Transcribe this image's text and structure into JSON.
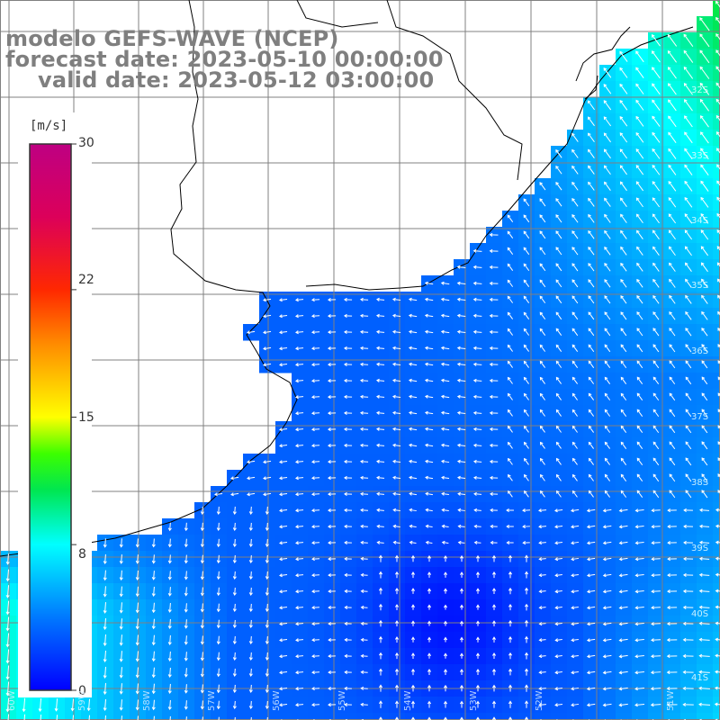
{
  "title": {
    "line1": "modelo GEFS-WAVE (NCEP)",
    "line2": "forecast date: 2023-05-10 00:00:00",
    "line3": "valid date: 2023-05-12 03:00:00"
  },
  "colorbar": {
    "unit": "[m/s]",
    "ticks": [
      "30",
      "22",
      "15",
      "8",
      "0"
    ],
    "tick_values": [
      30,
      22,
      15,
      8,
      0
    ],
    "range": [
      0,
      30
    ],
    "colors": [
      "#0000ff",
      "#00b0ff",
      "#00ffff",
      "#00e040",
      "#40ff00",
      "#ffff00",
      "#ff8000",
      "#ff0000",
      "#d00060",
      "#c00080"
    ]
  },
  "axes": {
    "lat_labels": [
      "32S",
      "33S",
      "34S",
      "35S",
      "36S",
      "37S",
      "38S",
      "39S",
      "40S",
      "41S"
    ],
    "lon_labels": [
      "60W",
      "59W",
      "58W",
      "57W",
      "56W",
      "55W",
      "54W",
      "53W",
      "52W",
      "51W"
    ]
  },
  "colors": {
    "land": "#ffffff",
    "grid": "#808080",
    "coast": "#000000",
    "arrow": "#ffffff",
    "title": "#7f7f7f"
  }
}
